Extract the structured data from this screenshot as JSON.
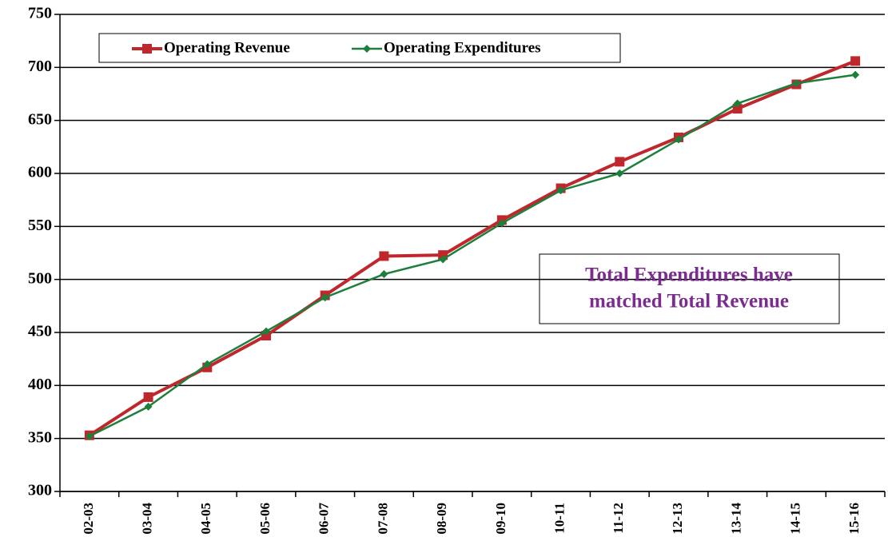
{
  "chart_data": {
    "type": "line",
    "categories": [
      "02-03",
      "03-04",
      "04-05",
      "05-06",
      "06-07",
      "07-08",
      "08-09",
      "09-10",
      "10-11",
      "11-12",
      "12-13",
      "13-14",
      "14-15",
      "15-16"
    ],
    "series": [
      {
        "name": "Operating Revenue",
        "color": "#c0272d",
        "marker": "square",
        "values": [
          353,
          389,
          417,
          447,
          485,
          522,
          523,
          556,
          586,
          611,
          634,
          661,
          684,
          706
        ]
      },
      {
        "name": "Operating Expenditures",
        "color": "#1e7f3c",
        "marker": "diamond",
        "values": [
          352,
          380,
          420,
          451,
          483,
          505,
          519,
          553,
          584,
          600,
          632,
          666,
          685,
          693
        ]
      }
    ],
    "ylim": [
      300,
      750
    ],
    "yticks": [
      300,
      350,
      400,
      450,
      500,
      550,
      600,
      650,
      700,
      750
    ],
    "grid": true,
    "legend": "top",
    "annotation": {
      "lines": [
        "Total Expenditures have",
        "matched Total Revenue"
      ],
      "color": "#7b2c8f"
    }
  }
}
